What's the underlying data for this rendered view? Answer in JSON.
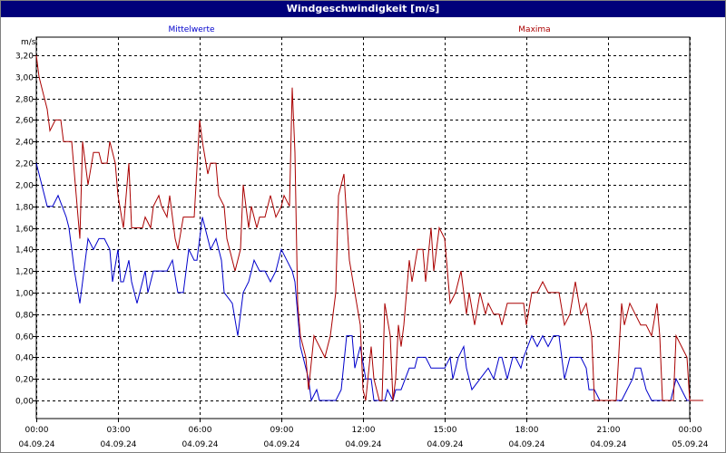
{
  "window": {
    "title": "Windgeschwindigkeit [m/s]"
  },
  "chart_data": {
    "type": "line",
    "title": "Windgeschwindigkeit [m/s]",
    "ylabel": "m/s",
    "ylim": [
      0,
      3.2
    ],
    "yticks": [
      "0,00",
      "0,20",
      "0,40",
      "0,60",
      "0,80",
      "1,00",
      "1,20",
      "1,40",
      "1,60",
      "1,80",
      "2,00",
      "2,20",
      "2,40",
      "2,60",
      "2,80",
      "3,00",
      "3,20"
    ],
    "xlim": [
      "2024-09-04 00:00",
      "2024-09-05 00:00"
    ],
    "xticks": [
      {
        "time": "00:00",
        "date": "04.09.24"
      },
      {
        "time": "03:00",
        "date": "04.09.24"
      },
      {
        "time": "06:00",
        "date": "04.09.24"
      },
      {
        "time": "09:00",
        "date": "04.09.24"
      },
      {
        "time": "12:00",
        "date": "04.09.24"
      },
      {
        "time": "15:00",
        "date": "04.09.24"
      },
      {
        "time": "18:00",
        "date": "04.09.24"
      },
      {
        "time": "21:00",
        "date": "04.09.24"
      },
      {
        "time": "00:00",
        "date": "05.09.24"
      }
    ],
    "grid": true,
    "legend": "top",
    "x_unit": "hours",
    "series": [
      {
        "name": "Mittelwerte",
        "color": "#0000cc",
        "points": [
          [
            0.0,
            2.2
          ],
          [
            0.3,
            1.9
          ],
          [
            0.4,
            1.8
          ],
          [
            0.6,
            1.8
          ],
          [
            0.8,
            1.9
          ],
          [
            1.1,
            1.7
          ],
          [
            1.2,
            1.6
          ],
          [
            1.4,
            1.2
          ],
          [
            1.6,
            0.9
          ],
          [
            1.9,
            1.5
          ],
          [
            2.1,
            1.4
          ],
          [
            2.3,
            1.5
          ],
          [
            2.5,
            1.5
          ],
          [
            2.7,
            1.4
          ],
          [
            2.8,
            1.1
          ],
          [
            3.0,
            1.4
          ],
          [
            3.1,
            1.1
          ],
          [
            3.2,
            1.1
          ],
          [
            3.4,
            1.3
          ],
          [
            3.5,
            1.1
          ],
          [
            3.7,
            0.9
          ],
          [
            3.8,
            1.0
          ],
          [
            4.0,
            1.2
          ],
          [
            4.1,
            1.0
          ],
          [
            4.3,
            1.2
          ],
          [
            4.6,
            1.2
          ],
          [
            4.8,
            1.2
          ],
          [
            5.0,
            1.3
          ],
          [
            5.2,
            1.0
          ],
          [
            5.4,
            1.0
          ],
          [
            5.6,
            1.4
          ],
          [
            5.8,
            1.3
          ],
          [
            5.9,
            1.3
          ],
          [
            6.1,
            1.7
          ],
          [
            6.2,
            1.6
          ],
          [
            6.4,
            1.4
          ],
          [
            6.6,
            1.5
          ],
          [
            6.8,
            1.3
          ],
          [
            6.9,
            1.0
          ],
          [
            7.2,
            0.9
          ],
          [
            7.4,
            0.6
          ],
          [
            7.6,
            1.0
          ],
          [
            7.8,
            1.1
          ],
          [
            8.0,
            1.3
          ],
          [
            8.2,
            1.2
          ],
          [
            8.4,
            1.2
          ],
          [
            8.6,
            1.1
          ],
          [
            8.8,
            1.2
          ],
          [
            9.0,
            1.4
          ],
          [
            9.2,
            1.3
          ],
          [
            9.4,
            1.2
          ],
          [
            9.5,
            1.1
          ],
          [
            9.7,
            0.5
          ],
          [
            9.8,
            0.4
          ],
          [
            10.0,
            0.2
          ],
          [
            10.1,
            0.0
          ],
          [
            10.3,
            0.1
          ],
          [
            10.4,
            0.0
          ],
          [
            10.7,
            0.0
          ],
          [
            11.0,
            0.0
          ],
          [
            11.2,
            0.1
          ],
          [
            11.4,
            0.6
          ],
          [
            11.6,
            0.6
          ],
          [
            11.7,
            0.3
          ],
          [
            11.9,
            0.5
          ],
          [
            12.1,
            0.2
          ],
          [
            12.3,
            0.2
          ],
          [
            12.4,
            0.0
          ],
          [
            12.6,
            0.0
          ],
          [
            12.8,
            0.0
          ],
          [
            12.9,
            0.1
          ],
          [
            13.1,
            0.0
          ],
          [
            13.2,
            0.1
          ],
          [
            13.4,
            0.1
          ],
          [
            13.7,
            0.3
          ],
          [
            13.9,
            0.3
          ],
          [
            14.0,
            0.4
          ],
          [
            14.2,
            0.4
          ],
          [
            14.3,
            0.4
          ],
          [
            14.5,
            0.3
          ],
          [
            14.7,
            0.3
          ],
          [
            14.9,
            0.3
          ],
          [
            15.0,
            0.3
          ],
          [
            15.2,
            0.4
          ],
          [
            15.3,
            0.2
          ],
          [
            15.5,
            0.4
          ],
          [
            15.7,
            0.5
          ],
          [
            15.8,
            0.3
          ],
          [
            16.0,
            0.1
          ],
          [
            16.3,
            0.2
          ],
          [
            16.6,
            0.3
          ],
          [
            16.8,
            0.2
          ],
          [
            17.0,
            0.4
          ],
          [
            17.1,
            0.4
          ],
          [
            17.3,
            0.2
          ],
          [
            17.5,
            0.4
          ],
          [
            17.6,
            0.4
          ],
          [
            17.8,
            0.3
          ],
          [
            17.9,
            0.4
          ],
          [
            18.2,
            0.6
          ],
          [
            18.4,
            0.5
          ],
          [
            18.6,
            0.6
          ],
          [
            18.8,
            0.5
          ],
          [
            19.0,
            0.6
          ],
          [
            19.2,
            0.6
          ],
          [
            19.4,
            0.2
          ],
          [
            19.6,
            0.4
          ],
          [
            19.8,
            0.4
          ],
          [
            20.0,
            0.4
          ],
          [
            20.2,
            0.3
          ],
          [
            20.3,
            0.1
          ],
          [
            20.5,
            0.1
          ],
          [
            20.7,
            0.0
          ],
          [
            21.0,
            0.0
          ],
          [
            21.3,
            0.0
          ],
          [
            21.5,
            0.0
          ],
          [
            21.7,
            0.1
          ],
          [
            21.9,
            0.2
          ],
          [
            22.0,
            0.3
          ],
          [
            22.2,
            0.3
          ],
          [
            22.4,
            0.1
          ],
          [
            22.6,
            0.0
          ],
          [
            22.9,
            0.0
          ],
          [
            23.2,
            0.0
          ],
          [
            23.3,
            0.0
          ],
          [
            23.5,
            0.2
          ],
          [
            23.7,
            0.1
          ],
          [
            23.9,
            0.0
          ],
          [
            24.0,
            0.0
          ]
        ]
      },
      {
        "name": "Maxima",
        "color": "#aa0000",
        "points": [
          [
            0.0,
            3.2
          ],
          [
            0.1,
            3.0
          ],
          [
            0.2,
            2.9
          ],
          [
            0.3,
            2.8
          ],
          [
            0.4,
            2.7
          ],
          [
            0.5,
            2.5
          ],
          [
            0.7,
            2.6
          ],
          [
            0.9,
            2.6
          ],
          [
            1.0,
            2.4
          ],
          [
            1.3,
            2.4
          ],
          [
            1.4,
            2.1
          ],
          [
            1.6,
            1.5
          ],
          [
            1.7,
            2.4
          ],
          [
            1.9,
            2.0
          ],
          [
            2.1,
            2.3
          ],
          [
            2.3,
            2.3
          ],
          [
            2.4,
            2.2
          ],
          [
            2.6,
            2.2
          ],
          [
            2.7,
            2.4
          ],
          [
            2.9,
            2.2
          ],
          [
            3.0,
            1.9
          ],
          [
            3.2,
            1.6
          ],
          [
            3.4,
            2.2
          ],
          [
            3.5,
            1.6
          ],
          [
            3.7,
            1.6
          ],
          [
            3.9,
            1.6
          ],
          [
            4.0,
            1.7
          ],
          [
            4.2,
            1.6
          ],
          [
            4.3,
            1.8
          ],
          [
            4.5,
            1.9
          ],
          [
            4.6,
            1.8
          ],
          [
            4.8,
            1.7
          ],
          [
            4.9,
            1.9
          ],
          [
            5.1,
            1.5
          ],
          [
            5.2,
            1.4
          ],
          [
            5.4,
            1.7
          ],
          [
            5.5,
            1.7
          ],
          [
            5.7,
            1.7
          ],
          [
            5.8,
            1.7
          ],
          [
            6.0,
            2.6
          ],
          [
            6.1,
            2.4
          ],
          [
            6.3,
            2.1
          ],
          [
            6.4,
            2.2
          ],
          [
            6.6,
            2.2
          ],
          [
            6.7,
            1.9
          ],
          [
            6.9,
            1.8
          ],
          [
            7.0,
            1.5
          ],
          [
            7.2,
            1.3
          ],
          [
            7.3,
            1.2
          ],
          [
            7.5,
            1.4
          ],
          [
            7.6,
            2.0
          ],
          [
            7.8,
            1.6
          ],
          [
            7.9,
            1.8
          ],
          [
            8.1,
            1.6
          ],
          [
            8.2,
            1.7
          ],
          [
            8.4,
            1.7
          ],
          [
            8.6,
            1.9
          ],
          [
            8.8,
            1.7
          ],
          [
            9.0,
            1.8
          ],
          [
            9.1,
            1.9
          ],
          [
            9.3,
            1.8
          ],
          [
            9.4,
            2.9
          ],
          [
            9.5,
            2.3
          ],
          [
            9.6,
            0.9
          ],
          [
            9.7,
            0.6
          ],
          [
            9.9,
            0.4
          ],
          [
            10.0,
            0.1
          ],
          [
            10.2,
            0.6
          ],
          [
            10.4,
            0.5
          ],
          [
            10.6,
            0.4
          ],
          [
            10.8,
            0.6
          ],
          [
            11.0,
            1.0
          ],
          [
            11.1,
            1.9
          ],
          [
            11.3,
            2.1
          ],
          [
            11.4,
            1.7
          ],
          [
            11.5,
            1.3
          ],
          [
            11.7,
            1.0
          ],
          [
            11.9,
            0.7
          ],
          [
            12.0,
            0.1
          ],
          [
            12.1,
            0.0
          ],
          [
            12.3,
            0.5
          ],
          [
            12.4,
            0.2
          ],
          [
            12.6,
            0.0
          ],
          [
            12.7,
            0.0
          ],
          [
            12.8,
            0.9
          ],
          [
            13.0,
            0.6
          ],
          [
            13.1,
            0.0
          ],
          [
            13.2,
            0.2
          ],
          [
            13.3,
            0.7
          ],
          [
            13.4,
            0.5
          ],
          [
            13.5,
            0.7
          ],
          [
            13.7,
            1.3
          ],
          [
            13.8,
            1.1
          ],
          [
            14.0,
            1.4
          ],
          [
            14.2,
            1.4
          ],
          [
            14.3,
            1.1
          ],
          [
            14.5,
            1.6
          ],
          [
            14.6,
            1.2
          ],
          [
            14.8,
            1.6
          ],
          [
            15.0,
            1.5
          ],
          [
            15.2,
            0.9
          ],
          [
            15.4,
            1.0
          ],
          [
            15.6,
            1.2
          ],
          [
            15.8,
            0.8
          ],
          [
            15.9,
            1.0
          ],
          [
            16.1,
            0.7
          ],
          [
            16.3,
            1.0
          ],
          [
            16.5,
            0.8
          ],
          [
            16.6,
            0.9
          ],
          [
            16.8,
            0.8
          ],
          [
            17.0,
            0.8
          ],
          [
            17.1,
            0.7
          ],
          [
            17.3,
            0.9
          ],
          [
            17.5,
            0.9
          ],
          [
            17.7,
            0.9
          ],
          [
            17.9,
            0.9
          ],
          [
            18.0,
            0.7
          ],
          [
            18.2,
            1.0
          ],
          [
            18.4,
            1.0
          ],
          [
            18.6,
            1.1
          ],
          [
            18.8,
            1.0
          ],
          [
            19.0,
            1.0
          ],
          [
            19.2,
            1.0
          ],
          [
            19.4,
            0.7
          ],
          [
            19.6,
            0.8
          ],
          [
            19.8,
            1.1
          ],
          [
            20.0,
            0.8
          ],
          [
            20.2,
            0.9
          ],
          [
            20.4,
            0.6
          ],
          [
            20.5,
            0.0
          ],
          [
            20.7,
            0.0
          ],
          [
            20.9,
            0.0
          ],
          [
            21.1,
            0.0
          ],
          [
            21.3,
            0.0
          ],
          [
            21.5,
            0.9
          ],
          [
            21.6,
            0.7
          ],
          [
            21.8,
            0.9
          ],
          [
            22.0,
            0.8
          ],
          [
            22.2,
            0.7
          ],
          [
            22.4,
            0.7
          ],
          [
            22.6,
            0.6
          ],
          [
            22.8,
            0.9
          ],
          [
            22.9,
            0.6
          ],
          [
            23.0,
            0.0
          ],
          [
            23.2,
            0.0
          ],
          [
            23.4,
            0.0
          ],
          [
            23.5,
            0.6
          ],
          [
            23.7,
            0.5
          ],
          [
            23.9,
            0.4
          ],
          [
            24.0,
            0.0
          ],
          [
            24.3,
            0.0
          ],
          [
            24.5,
            0.0
          ]
        ]
      }
    ]
  }
}
